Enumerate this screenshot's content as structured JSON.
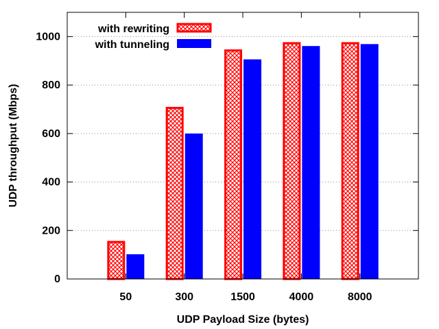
{
  "chart_data": {
    "type": "bar",
    "xlabel": "UDP Payload Size (bytes)",
    "ylabel": "UDP throughput (Mbps)",
    "categories": [
      "50",
      "300",
      "1500",
      "4000",
      "8000"
    ],
    "ylim": [
      0,
      1100
    ],
    "yticks": [
      0,
      200,
      400,
      600,
      800,
      1000
    ],
    "grid": "horizontal-dotted",
    "legend_position": "top-left",
    "series": [
      {
        "name": "with rewriting",
        "values": [
          157,
          710,
          947,
          977,
          977
        ],
        "color": "#ff0000",
        "fill": "crosshatch"
      },
      {
        "name": "with tunneling",
        "values": [
          102,
          600,
          906,
          961,
          969
        ],
        "color": "#0000ff",
        "fill": "solid"
      }
    ]
  }
}
